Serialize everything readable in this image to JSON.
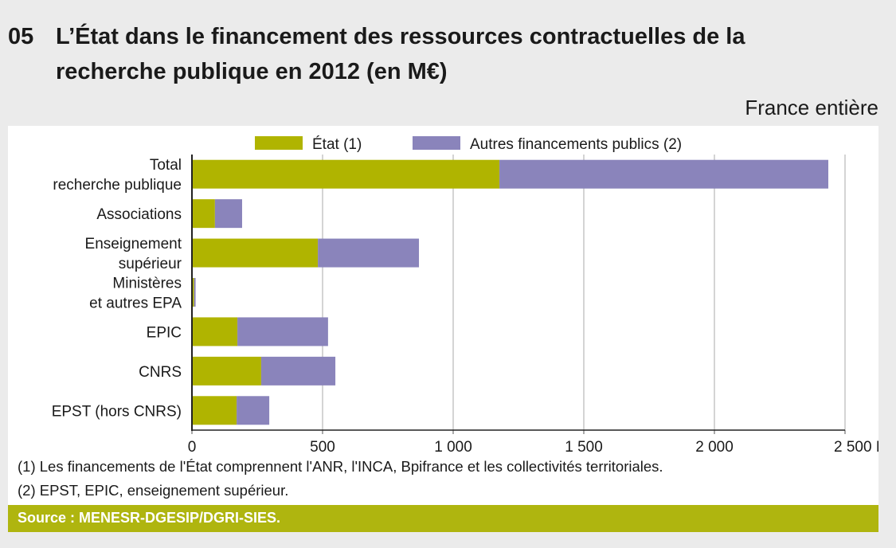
{
  "header": {
    "number": "05",
    "title": "L’État dans le financement des ressources contractuelles de la recherche publique en 2012 (en M€)",
    "scope": "France entière"
  },
  "chart_data": {
    "type": "bar",
    "orientation": "horizontal",
    "stacked": true,
    "categories": [
      "Total\nrecherche publique",
      "Associations",
      "Enseignement\nsupérieur",
      "Ministères\net autres EPA",
      "EPIC",
      "CNRS",
      "EPST (hors CNRS)"
    ],
    "series": [
      {
        "name": "État (1)",
        "color": "#b0b400",
        "values": [
          1177,
          88,
          482,
          8,
          174,
          265,
          171
        ]
      },
      {
        "name": "Autres financements publics (2)",
        "color": "#8a84bb",
        "values": [
          1259,
          104,
          387,
          6,
          347,
          284,
          125
        ]
      }
    ],
    "xlim": [
      0,
      2500
    ],
    "xticks": [
      0,
      500,
      1000,
      1500,
      2000,
      2500
    ],
    "xtick_labels": [
      "0",
      "500",
      "1 000",
      "1 500",
      "2 000",
      "2 500 M€"
    ],
    "grid": "vertical",
    "legend": "top"
  },
  "notes": [
    "(1) Les financements de l'État comprennent l'ANR, l'INCA, Bpifrance et les collectivités territoriales.",
    "(2) EPST, EPIC, enseignement supérieur."
  ],
  "source": "Source : MENESR-DGESIP/DGRI-SIES."
}
